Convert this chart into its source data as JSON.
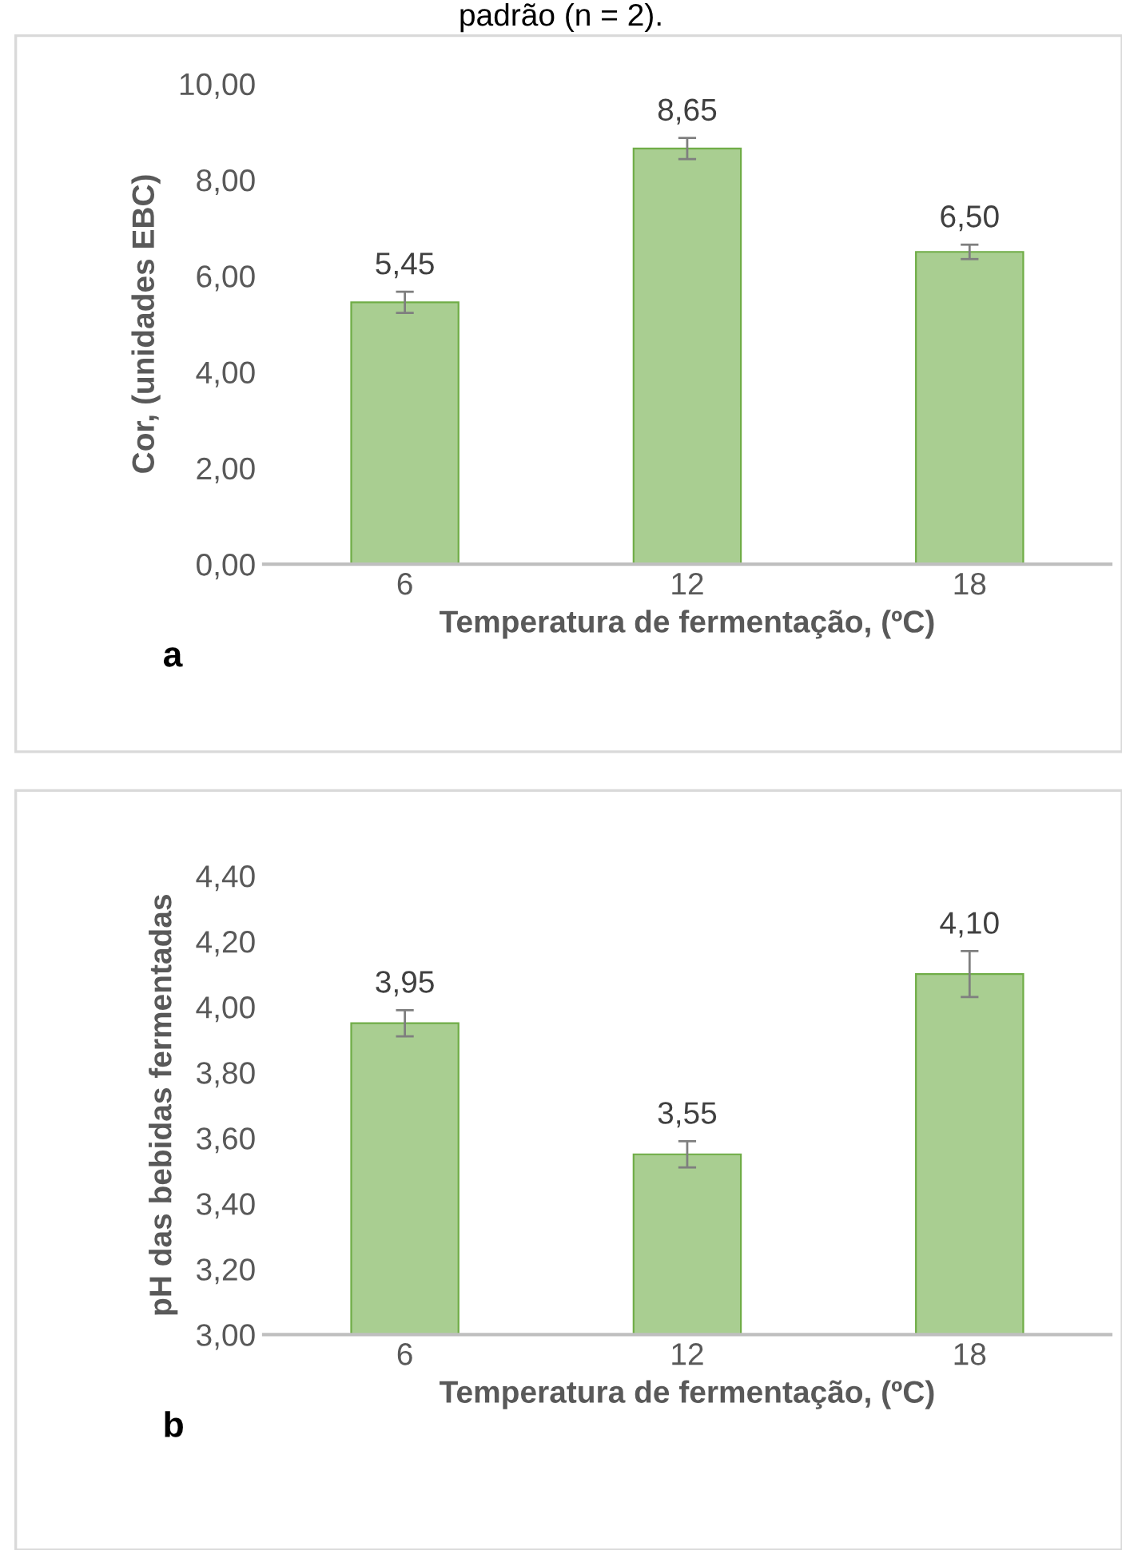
{
  "chart_data": [
    {
      "type": "bar",
      "xlabel": "Temperatura de fermentação, (ºC)",
      "ylabel": "Cor, (unidades EBC)",
      "categories": [
        "6",
        "12",
        "18"
      ],
      "values": [
        5.45,
        8.65,
        6.5
      ],
      "errors": [
        0.22,
        0.22,
        0.15
      ],
      "value_labels": [
        "5,45",
        "8,65",
        "6,50"
      ],
      "color": "#70ad47",
      "ylim": [
        0,
        10
      ],
      "yticks": [
        {
          "value": 0,
          "label": "0,00"
        },
        {
          "value": 2,
          "label": "2,00"
        },
        {
          "value": 4,
          "label": "4,00"
        },
        {
          "value": 6,
          "label": "6,00"
        },
        {
          "value": 8,
          "label": "8,00"
        },
        {
          "value": 10,
          "label": "10,00"
        }
      ],
      "grid": false,
      "annotations": [
        "padrão (n = 2).",
        "a"
      ]
    },
    {
      "type": "bar",
      "xlabel": "Temperatura de fermentação, (ºC)",
      "ylabel": "pH das bebidas fermentadas",
      "categories": [
        "6",
        "12",
        "18"
      ],
      "values": [
        3.95,
        3.55,
        4.1
      ],
      "errors": [
        0.04,
        0.04,
        0.07
      ],
      "value_labels": [
        "3,95",
        "3,55",
        "4,10"
      ],
      "color": "#70ad47",
      "ylim": [
        3,
        4.4
      ],
      "yticks": [
        {
          "value": 3.0,
          "label": "3,00"
        },
        {
          "value": 3.2,
          "label": "3,20"
        },
        {
          "value": 3.4,
          "label": "3,40"
        },
        {
          "value": 3.6,
          "label": "3,60"
        },
        {
          "value": 3.8,
          "label": "3,80"
        },
        {
          "value": 4.0,
          "label": "4,00"
        },
        {
          "value": 4.2,
          "label": "4,20"
        },
        {
          "value": 4.4,
          "label": "4,40"
        }
      ],
      "grid": false,
      "annotations": [
        "b"
      ]
    }
  ]
}
